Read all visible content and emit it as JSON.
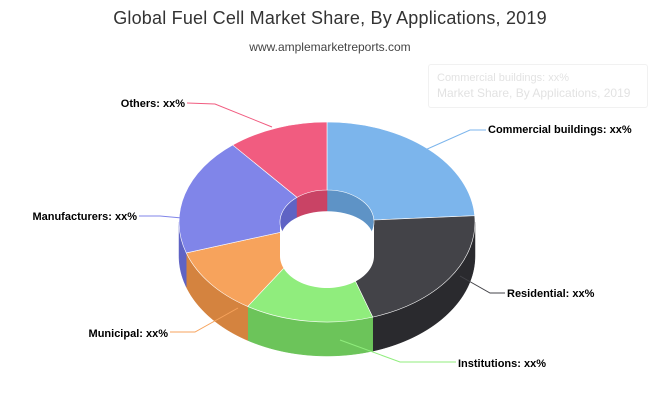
{
  "chart_data": {
    "type": "pie",
    "variant": "3d-donut",
    "title": "Global Fuel Cell Market Share, By Applications, 2019",
    "subtitle": "www.amplemarketreports.com",
    "ghost_tooltip": {
      "line1": "Commercial buildings: xx%",
      "line2": "Market Share, By Applications, 2019"
    },
    "slices": [
      {
        "name": "Commercial buildings",
        "label": "Commercial buildings: xx%",
        "value": 24,
        "color": "#7cb5ec",
        "side": "#5e93c6"
      },
      {
        "name": "Residential",
        "label": "Residential: xx%",
        "value": 21,
        "color": "#434348",
        "side": "#2a2a2e"
      },
      {
        "name": "Institutions",
        "label": "Institutions: xx%",
        "value": 14,
        "color": "#90ed7d",
        "side": "#6cc45a"
      },
      {
        "name": "Municipal",
        "label": "Municipal: xx%",
        "value": 11,
        "color": "#f7a35c",
        "side": "#d4833f"
      },
      {
        "name": "Manufacturers",
        "label": "Manufacturers: xx%",
        "value": 19,
        "color": "#8085e9",
        "side": "#5f63c4"
      },
      {
        "name": "Others",
        "label": "Others: xx%",
        "value": 11,
        "color": "#f15c80",
        "side": "#c94365"
      }
    ],
    "start_angle_deg": 0,
    "legend": "none",
    "data_labels": "outside"
  }
}
